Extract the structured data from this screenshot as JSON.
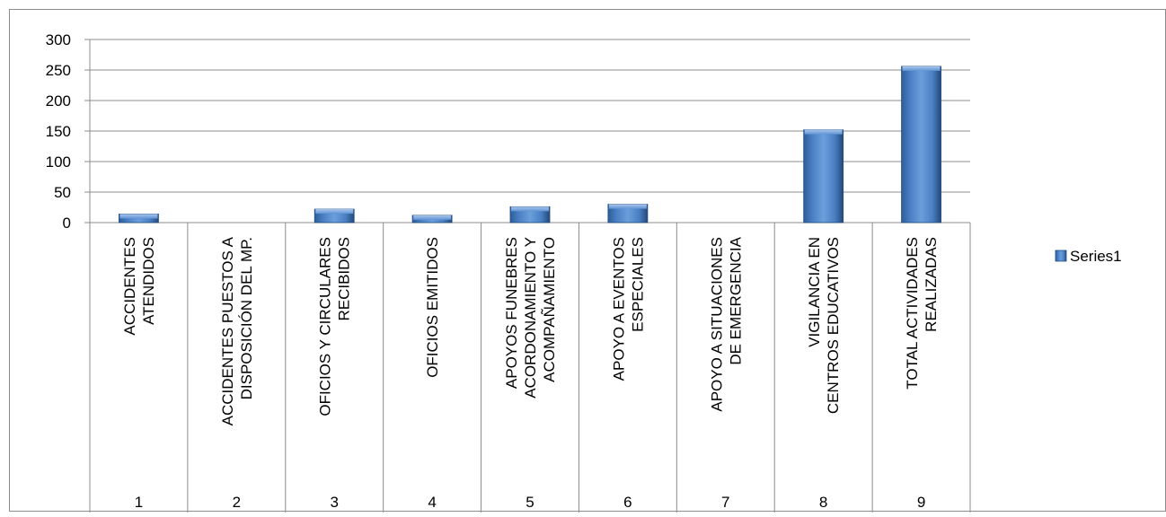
{
  "chart_data": {
    "type": "bar",
    "categories": [
      {
        "index": "1",
        "lines": [
          "ACCIDENTES",
          "ATENDIDOS"
        ]
      },
      {
        "index": "2",
        "lines": [
          "ACCIDENTES PUESTOS A",
          "DISPOSICIÓN DEL MP."
        ]
      },
      {
        "index": "3",
        "lines": [
          "OFICIOS Y CIRCULARES",
          "RECIBIDOS"
        ]
      },
      {
        "index": "4",
        "lines": [
          "OFICIOS EMITIDOS"
        ]
      },
      {
        "index": "5",
        "lines": [
          "APOYOS FUNEBRES",
          "ACORDONAMIENTO Y",
          "ACOMPAÑAMIENTO"
        ]
      },
      {
        "index": "6",
        "lines": [
          "APOYO A EVENTOS",
          "ESPECIALES"
        ]
      },
      {
        "index": "7",
        "lines": [
          "APOYO A SITUACIONES",
          "DE EMERGENCIA"
        ]
      },
      {
        "index": "8",
        "lines": [
          "VIGILANCIA EN",
          "CENTROS EDUCATIVOS"
        ]
      },
      {
        "index": "9",
        "lines": [
          "TOTAL ACTIVIDADES",
          "REALIZADAS"
        ]
      }
    ],
    "series": [
      {
        "name": "Series1",
        "color": "#4a7ebb",
        "values": [
          14,
          0,
          22,
          12,
          26,
          30,
          0,
          152,
          256
        ]
      }
    ],
    "y_ticks": [
      "0",
      "50",
      "100",
      "150",
      "200",
      "250",
      "300"
    ],
    "ylim": [
      0,
      300
    ],
    "grid": true,
    "legend_position": "right"
  }
}
